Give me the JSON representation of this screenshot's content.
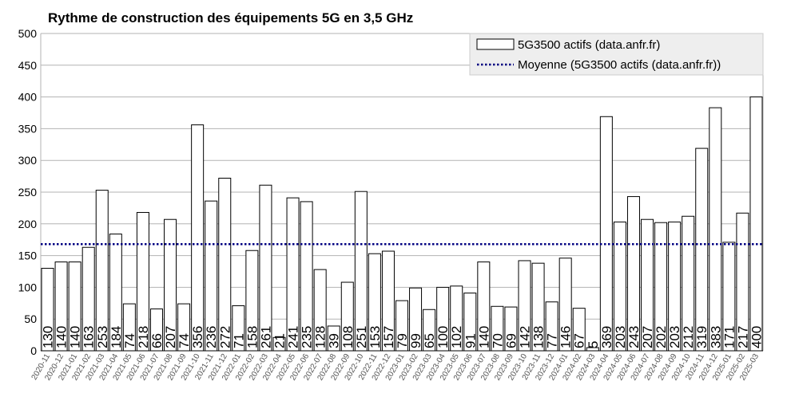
{
  "chart_data": {
    "type": "bar",
    "title": "Rythme de construction des équipements 5G en 3,5 GHz",
    "ylim": [
      0,
      500
    ],
    "yticks": [
      0,
      50,
      100,
      150,
      200,
      250,
      300,
      350,
      400,
      450,
      500
    ],
    "grid": true,
    "legend_position": "top-right",
    "categories": [
      "2020-11",
      "2020-12",
      "2021-01",
      "2021-02",
      "2021-03",
      "2021-04",
      "2021-05",
      "2021-06",
      "2021-07",
      "2021-08",
      "2021-09",
      "2021-10",
      "2021-11",
      "2021-12",
      "2022-01",
      "2022-02",
      "2022-03",
      "2022-04",
      "2022-05",
      "2022-06",
      "2022-07",
      "2022-08",
      "2022-09",
      "2022-10",
      "2022-11",
      "2022-12",
      "2023-01",
      "2023-02",
      "2023-03",
      "2023-04",
      "2023-05",
      "2023-06",
      "2023-07",
      "2023-08",
      "2023-09",
      "2023-10",
      "2023-11",
      "2023-12",
      "2024-01",
      "2024-02",
      "2024-03",
      "2024-04",
      "2024-05",
      "2024-06",
      "2024-07",
      "2024-08",
      "2024-09",
      "2024-10",
      "2024-11",
      "2024-12",
      "2025-01",
      "2025-02",
      "2025-03"
    ],
    "series": [
      {
        "name": "5G3500 actifs (data.anfr.fr)",
        "values": [
          130,
          140,
          140,
          163,
          253,
          184,
          74,
          218,
          66,
          207,
          74,
          356,
          236,
          272,
          71,
          158,
          261,
          21,
          241,
          235,
          128,
          39,
          108,
          251,
          153,
          157,
          79,
          99,
          65,
          100,
          102,
          91,
          140,
          70,
          69,
          142,
          138,
          77,
          146,
          67,
          5,
          369,
          203,
          243,
          207,
          202,
          203,
          212,
          319,
          383,
          171,
          217,
          400
        ]
      },
      {
        "name": "Moyenne (5G3500 actifs (data.anfr.fr))",
        "value": 168
      }
    ],
    "colors": {
      "bar_fill": "#ffffff",
      "bar_stroke": "#000000",
      "mean_line": "#000080",
      "grid": "#b3b3b3",
      "legend_bg": "#eeeeee"
    }
  }
}
